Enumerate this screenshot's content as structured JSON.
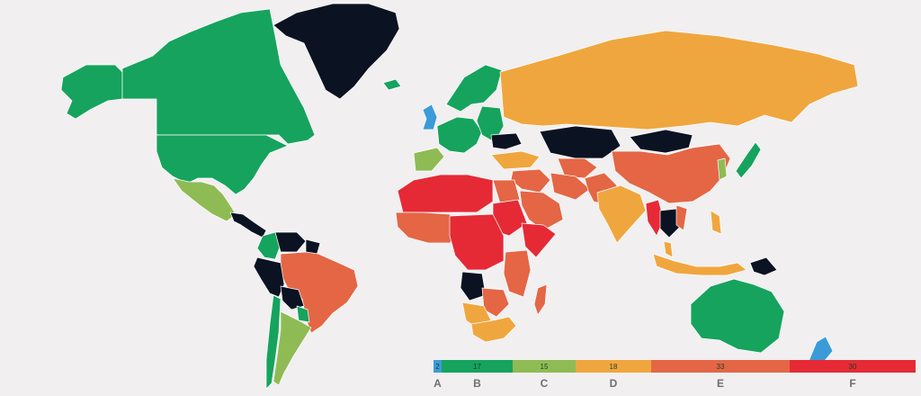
{
  "colors": {
    "background": "#f1eff0",
    "A": "#3b9bd9",
    "B": "#16a35d",
    "C": "#8fbb54",
    "D": "#f0a63e",
    "E": "#e46645",
    "F": "#e52a36",
    "no_data": "#0b1322"
  },
  "legend": [
    {
      "grade": "A",
      "count": "2",
      "color": "#3b9bd9"
    },
    {
      "grade": "B",
      "count": "17",
      "color": "#16a35d"
    },
    {
      "grade": "C",
      "count": "15",
      "color": "#8fbb54"
    },
    {
      "grade": "D",
      "count": "18",
      "color": "#f0a63e"
    },
    {
      "grade": "E",
      "count": "33",
      "color": "#e46645"
    },
    {
      "grade": "F",
      "count": "30",
      "color": "#e52a36"
    }
  ],
  "regions": [
    {
      "name": "greenland",
      "grade": "none"
    },
    {
      "name": "canada",
      "grade": "B"
    },
    {
      "name": "alaska",
      "grade": "B"
    },
    {
      "name": "usa",
      "grade": "B"
    },
    {
      "name": "mexico",
      "grade": "C"
    },
    {
      "name": "central-america",
      "grade": "none"
    },
    {
      "name": "colombia",
      "grade": "B"
    },
    {
      "name": "venezuela",
      "grade": "none"
    },
    {
      "name": "guianas",
      "grade": "none"
    },
    {
      "name": "brazil",
      "grade": "E"
    },
    {
      "name": "peru",
      "grade": "none"
    },
    {
      "name": "bolivia",
      "grade": "none"
    },
    {
      "name": "chile",
      "grade": "B"
    },
    {
      "name": "argentina",
      "grade": "C"
    },
    {
      "name": "paraguay",
      "grade": "B"
    },
    {
      "name": "iceland",
      "grade": "B"
    },
    {
      "name": "united-kingdom",
      "grade": "A"
    },
    {
      "name": "scandinavia",
      "grade": "B"
    },
    {
      "name": "iberia",
      "grade": "C"
    },
    {
      "name": "western-europe",
      "grade": "B"
    },
    {
      "name": "eastern-europe",
      "grade": "B"
    },
    {
      "name": "ukraine",
      "grade": "none"
    },
    {
      "name": "turkey",
      "grade": "D"
    },
    {
      "name": "russia",
      "grade": "D"
    },
    {
      "name": "kazakhstan",
      "grade": "none"
    },
    {
      "name": "mongolia",
      "grade": "none"
    },
    {
      "name": "china",
      "grade": "E"
    },
    {
      "name": "japan",
      "grade": "B"
    },
    {
      "name": "korea",
      "grade": "C"
    },
    {
      "name": "middle-east",
      "grade": "E"
    },
    {
      "name": "arabia",
      "grade": "E"
    },
    {
      "name": "iran",
      "grade": "E"
    },
    {
      "name": "central-asia",
      "grade": "E"
    },
    {
      "name": "afghanistan-pakistan",
      "grade": "E"
    },
    {
      "name": "india",
      "grade": "D"
    },
    {
      "name": "myanmar",
      "grade": "F"
    },
    {
      "name": "indochina",
      "grade": "none"
    },
    {
      "name": "vietnam",
      "grade": "E"
    },
    {
      "name": "malaysia",
      "grade": "D"
    },
    {
      "name": "indonesia",
      "grade": "D"
    },
    {
      "name": "philippines",
      "grade": "D"
    },
    {
      "name": "papua-new-guinea",
      "grade": "none"
    },
    {
      "name": "australia",
      "grade": "B"
    },
    {
      "name": "new-zealand",
      "grade": "A"
    },
    {
      "name": "north-africa",
      "grade": "F"
    },
    {
      "name": "west-africa",
      "grade": "E"
    },
    {
      "name": "egypt",
      "grade": "E"
    },
    {
      "name": "sudan",
      "grade": "F"
    },
    {
      "name": "horn-of-africa",
      "grade": "F"
    },
    {
      "name": "central-africa",
      "grade": "F"
    },
    {
      "name": "east-africa",
      "grade": "E"
    },
    {
      "name": "angola",
      "grade": "none"
    },
    {
      "name": "zambia-region",
      "grade": "E"
    },
    {
      "name": "southern-africa",
      "grade": "D"
    },
    {
      "name": "namibia-botswana",
      "grade": "D"
    },
    {
      "name": "madagascar",
      "grade": "E"
    }
  ]
}
